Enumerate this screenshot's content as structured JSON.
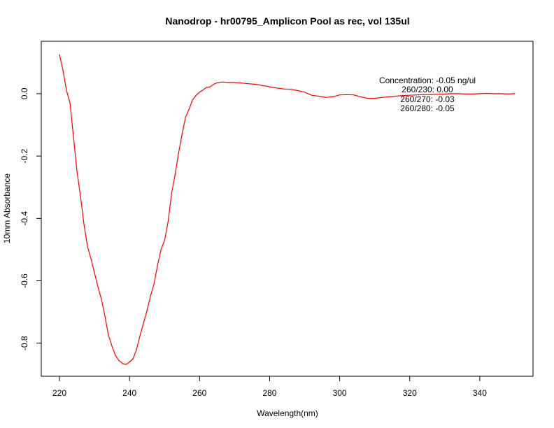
{
  "chart_data": {
    "type": "line",
    "title": "Nanodrop - hr00795_Amplicon Pool as rec, vol 135ul",
    "xlabel": "Wavelength(nm)",
    "ylabel": "10mm Absorbance",
    "xlim": [
      214.8,
      355.2
    ],
    "ylim": [
      -0.906,
      0.168
    ],
    "x_ticks": [
      220,
      240,
      260,
      280,
      300,
      320,
      340
    ],
    "x_tick_labels": [
      "220",
      "240",
      "260",
      "280",
      "300",
      "320",
      "340"
    ],
    "y_ticks": [
      -0.8,
      -0.6,
      -0.4,
      -0.2,
      0.0
    ],
    "y_tick_labels": [
      "-0.8",
      "-0.6",
      "-0.4",
      "-0.2",
      "0.0"
    ],
    "grid": false,
    "line_color": "#ff0000",
    "annotations": [
      "Concentration: -0.05 ng/ul",
      "260/230: 0.00",
      "260/270: -0.03",
      "260/280: -0.05"
    ],
    "series": [
      {
        "x": [
          220,
          221,
          222,
          223,
          224,
          225,
          226,
          227,
          228,
          229,
          230,
          231,
          232,
          233,
          234,
          235,
          236,
          237,
          238,
          239,
          240,
          241,
          242,
          243,
          244,
          245,
          246,
          247,
          248,
          249,
          250,
          251,
          252,
          253,
          254,
          255,
          256,
          257,
          258,
          259,
          260,
          261,
          262,
          263,
          264,
          265,
          266,
          267,
          268,
          269,
          270,
          271,
          272,
          273,
          274,
          275,
          276,
          277,
          278,
          279,
          280,
          282,
          284,
          286,
          288,
          290,
          292,
          294,
          296,
          298,
          300,
          302,
          304,
          306,
          308,
          310,
          312,
          314,
          316,
          318,
          320,
          322,
          324,
          326,
          328,
          330,
          332,
          334,
          336,
          338,
          340,
          342,
          344,
          346,
          348,
          350
        ],
        "y": [
          0.125,
          0.075,
          0.01,
          -0.03,
          -0.14,
          -0.25,
          -0.33,
          -0.42,
          -0.49,
          -0.53,
          -0.575,
          -0.62,
          -0.66,
          -0.715,
          -0.775,
          -0.81,
          -0.84,
          -0.856,
          -0.865,
          -0.868,
          -0.86,
          -0.85,
          -0.82,
          -0.775,
          -0.735,
          -0.695,
          -0.648,
          -0.61,
          -0.55,
          -0.5,
          -0.47,
          -0.41,
          -0.32,
          -0.26,
          -0.19,
          -0.13,
          -0.075,
          -0.05,
          -0.02,
          -0.005,
          0.005,
          0.012,
          0.02,
          0.022,
          0.03,
          0.035,
          0.037,
          0.037,
          0.036,
          0.036,
          0.036,
          0.035,
          0.034,
          0.033,
          0.032,
          0.031,
          0.03,
          0.028,
          0.026,
          0.024,
          0.022,
          0.018,
          0.015,
          0.014,
          0.01,
          0.005,
          -0.005,
          -0.008,
          -0.012,
          -0.01,
          -0.004,
          -0.003,
          -0.004,
          -0.01,
          -0.015,
          -0.015,
          -0.012,
          -0.01,
          -0.008,
          -0.006,
          -0.005,
          -0.004,
          -0.003,
          -0.003,
          -0.002,
          -0.001,
          0.0,
          0.0,
          -0.001,
          -0.001,
          0.0,
          0.001,
          0.0,
          0.0,
          -0.001,
          0.0
        ]
      }
    ]
  }
}
